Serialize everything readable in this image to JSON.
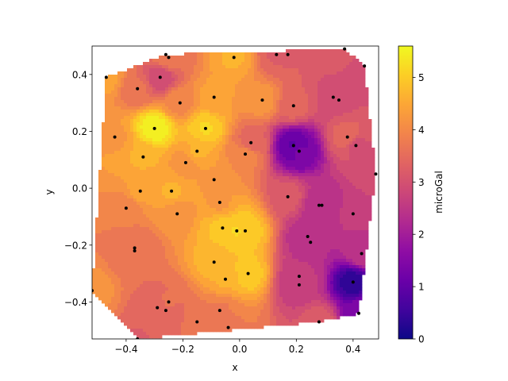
{
  "chart_data": {
    "type": "filled-contour",
    "xlabel": "x",
    "ylabel": "y",
    "colorbar_label": "microGal",
    "colormap": "plasma",
    "xlim": [
      -0.52,
      0.49
    ],
    "ylim": [
      -0.53,
      0.5
    ],
    "vlim": [
      0,
      5.6
    ],
    "xticks": [
      -0.4,
      -0.2,
      0.0,
      0.2,
      0.4
    ],
    "xtick_labels": [
      "−0.4",
      "−0.2",
      "0.0",
      "0.2",
      "0.4"
    ],
    "yticks": [
      -0.4,
      -0.2,
      0.0,
      0.2,
      0.4
    ],
    "ytick_labels": [
      "−0.4",
      "−0.2",
      "0.0",
      "0.2",
      "0.4"
    ],
    "cticks": [
      0,
      1,
      2,
      3,
      4,
      5
    ],
    "ctick_labels": [
      "0",
      "1",
      "2",
      "3",
      "4",
      "5"
    ],
    "grid": false,
    "points": [
      {
        "x": -0.26,
        "y": 0.47,
        "v": 3.7
      },
      {
        "x": -0.25,
        "y": 0.46,
        "v": 3.7
      },
      {
        "x": -0.02,
        "y": 0.46,
        "v": 4.6
      },
      {
        "x": 0.13,
        "y": 0.47,
        "v": 3.3
      },
      {
        "x": 0.17,
        "y": 0.47,
        "v": 3.3
      },
      {
        "x": 0.37,
        "y": 0.49,
        "v": 3.2
      },
      {
        "x": 0.44,
        "y": 0.43,
        "v": 2.9
      },
      {
        "x": -0.47,
        "y": 0.39,
        "v": 4.4
      },
      {
        "x": -0.28,
        "y": 0.39,
        "v": 2.8
      },
      {
        "x": -0.36,
        "y": 0.35,
        "v": 3.6
      },
      {
        "x": -0.21,
        "y": 0.3,
        "v": 4.0
      },
      {
        "x": -0.09,
        "y": 0.32,
        "v": 4.4
      },
      {
        "x": 0.08,
        "y": 0.31,
        "v": 4.2
      },
      {
        "x": 0.33,
        "y": 0.32,
        "v": 3.0
      },
      {
        "x": 0.35,
        "y": 0.31,
        "v": 3.0
      },
      {
        "x": 0.19,
        "y": 0.29,
        "v": 3.4
      },
      {
        "x": -0.3,
        "y": 0.21,
        "v": 5.5
      },
      {
        "x": -0.12,
        "y": 0.21,
        "v": 5.1
      },
      {
        "x": -0.44,
        "y": 0.18,
        "v": 4.3
      },
      {
        "x": 0.38,
        "y": 0.18,
        "v": 3.5
      },
      {
        "x": 0.41,
        "y": 0.15,
        "v": 3.0
      },
      {
        "x": 0.19,
        "y": 0.15,
        "v": 1.0
      },
      {
        "x": 0.21,
        "y": 0.13,
        "v": 1.3
      },
      {
        "x": 0.04,
        "y": 0.16,
        "v": 3.4
      },
      {
        "x": -0.15,
        "y": 0.13,
        "v": 4.6
      },
      {
        "x": 0.02,
        "y": 0.12,
        "v": 4.0
      },
      {
        "x": -0.34,
        "y": 0.11,
        "v": 4.6
      },
      {
        "x": -0.19,
        "y": 0.09,
        "v": 4.2
      },
      {
        "x": 0.48,
        "y": 0.05,
        "v": 3.0
      },
      {
        "x": -0.09,
        "y": 0.03,
        "v": 4.3
      },
      {
        "x": -0.35,
        "y": -0.01,
        "v": 4.4
      },
      {
        "x": -0.24,
        "y": -0.01,
        "v": 4.6
      },
      {
        "x": 0.17,
        "y": -0.03,
        "v": 3.2
      },
      {
        "x": -0.07,
        "y": -0.05,
        "v": 4.3
      },
      {
        "x": 0.28,
        "y": -0.06,
        "v": 2.4
      },
      {
        "x": 0.29,
        "y": -0.06,
        "v": 2.4
      },
      {
        "x": -0.4,
        "y": -0.07,
        "v": 3.9
      },
      {
        "x": -0.22,
        "y": -0.09,
        "v": 4.2
      },
      {
        "x": 0.4,
        "y": -0.09,
        "v": 2.6
      },
      {
        "x": -0.06,
        "y": -0.14,
        "v": 4.9
      },
      {
        "x": -0.01,
        "y": -0.15,
        "v": 5.1
      },
      {
        "x": 0.02,
        "y": -0.15,
        "v": 5.0
      },
      {
        "x": 0.24,
        "y": -0.17,
        "v": 2.3
      },
      {
        "x": 0.25,
        "y": -0.19,
        "v": 2.3
      },
      {
        "x": -0.37,
        "y": -0.21,
        "v": 3.6
      },
      {
        "x": -0.37,
        "y": -0.22,
        "v": 3.6
      },
      {
        "x": 0.43,
        "y": -0.23,
        "v": 2.5
      },
      {
        "x": -0.09,
        "y": -0.26,
        "v": 4.7
      },
      {
        "x": 0.03,
        "y": -0.3,
        "v": 5.0
      },
      {
        "x": 0.21,
        "y": -0.31,
        "v": 2.6
      },
      {
        "x": 0.21,
        "y": -0.34,
        "v": 2.6
      },
      {
        "x": -0.05,
        "y": -0.32,
        "v": 4.6
      },
      {
        "x": 0.4,
        "y": -0.33,
        "v": 0.4
      },
      {
        "x": -0.52,
        "y": -0.36,
        "v": 4.2
      },
      {
        "x": -0.25,
        "y": -0.4,
        "v": 3.6
      },
      {
        "x": -0.29,
        "y": -0.42,
        "v": 3.4
      },
      {
        "x": -0.26,
        "y": -0.43,
        "v": 3.4
      },
      {
        "x": -0.07,
        "y": -0.43,
        "v": 3.8
      },
      {
        "x": 0.42,
        "y": -0.44,
        "v": 1.4
      },
      {
        "x": -0.15,
        "y": -0.47,
        "v": 3.6
      },
      {
        "x": 0.28,
        "y": -0.47,
        "v": 3.2
      },
      {
        "x": -0.04,
        "y": -0.49,
        "v": 3.8
      },
      {
        "x": -0.36,
        "y": -0.53,
        "v": 3.3
      }
    ]
  }
}
